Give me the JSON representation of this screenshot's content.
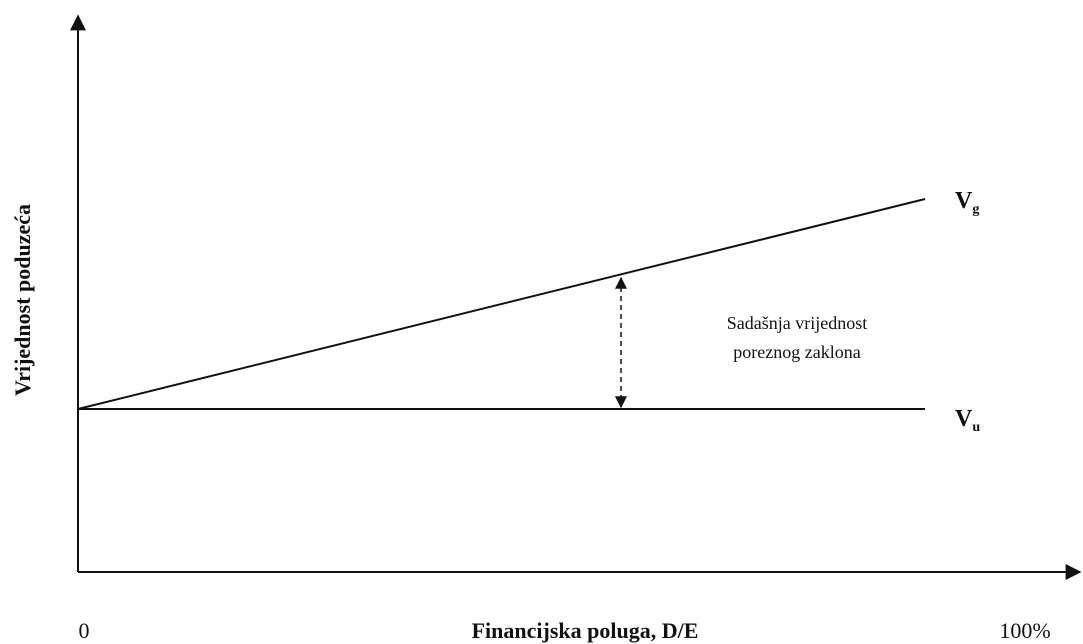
{
  "axes": {
    "y_label": "Vrijednost poduzeća",
    "x_label": "Financijska poluga, D/E",
    "x_start": "0",
    "x_end": "100%"
  },
  "lines": [
    {
      "label": "V",
      "subscript": "g"
    },
    {
      "label": "V",
      "subscript": "u"
    }
  ],
  "annotation": [
    "Sadašnja vrijednost",
    "poreznog zaklona"
  ]
}
